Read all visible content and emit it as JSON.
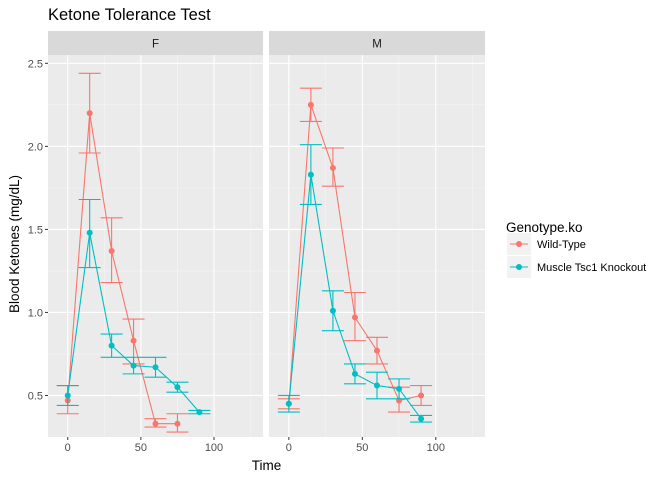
{
  "chart_data": {
    "type": "line",
    "title": "Ketone Tolerance Test",
    "xlabel": "Time",
    "ylabel": "Blood Ketones (mg/dL)",
    "xlim": [
      -13.5,
      133.5
    ],
    "ylim": [
      0.25,
      2.55
    ],
    "x_ticks": [
      0,
      50,
      100
    ],
    "y_ticks": [
      0.5,
      1.0,
      1.5,
      2.0,
      2.5
    ],
    "y_tick_labels": [
      "0.5",
      "1.0",
      "1.5",
      "2.0",
      "2.5"
    ],
    "grid": true,
    "facets": [
      "F",
      "M"
    ],
    "legend": {
      "title": "Genotype.ko",
      "position": "right",
      "entries": [
        "Wild-Type",
        "Muscle Tsc1 Knockout"
      ]
    },
    "series": [
      {
        "name": "Wild-Type",
        "color": "#F8766D",
        "panels": {
          "F": [
            {
              "x": 0,
              "y": 0.47,
              "lo": 0.39,
              "hi": 0.56
            },
            {
              "x": 15,
              "y": 2.2,
              "lo": 1.96,
              "hi": 2.44
            },
            {
              "x": 30,
              "y": 1.37,
              "lo": 1.18,
              "hi": 1.57
            },
            {
              "x": 45,
              "y": 0.83,
              "lo": 0.69,
              "hi": 0.96
            },
            {
              "x": 60,
              "y": 0.33,
              "lo": 0.31,
              "hi": 0.36
            },
            {
              "x": 75,
              "y": 0.33,
              "lo": 0.28,
              "hi": 0.39
            }
          ],
          "M": [
            {
              "x": 0,
              "y": 0.45,
              "lo": 0.42,
              "hi": 0.48
            },
            {
              "x": 15,
              "y": 2.25,
              "lo": 2.15,
              "hi": 2.35
            },
            {
              "x": 30,
              "y": 1.87,
              "lo": 1.76,
              "hi": 1.99
            },
            {
              "x": 45,
              "y": 0.97,
              "lo": 0.83,
              "hi": 1.12
            },
            {
              "x": 60,
              "y": 0.77,
              "lo": 0.69,
              "hi": 0.85
            },
            {
              "x": 75,
              "y": 0.47,
              "lo": 0.4,
              "hi": 0.55
            },
            {
              "x": 90,
              "y": 0.5,
              "lo": 0.44,
              "hi": 0.56
            }
          ]
        }
      },
      {
        "name": "Muscle Tsc1 Knockout",
        "color": "#00BFC4",
        "panels": {
          "F": [
            {
              "x": 0,
              "y": 0.5,
              "lo": 0.44,
              "hi": 0.56
            },
            {
              "x": 15,
              "y": 1.48,
              "lo": 1.27,
              "hi": 1.68
            },
            {
              "x": 30,
              "y": 0.8,
              "lo": 0.73,
              "hi": 0.87
            },
            {
              "x": 45,
              "y": 0.68,
              "lo": 0.63,
              "hi": 0.73
            },
            {
              "x": 60,
              "y": 0.67,
              "lo": 0.61,
              "hi": 0.73
            },
            {
              "x": 75,
              "y": 0.55,
              "lo": 0.52,
              "hi": 0.58
            },
            {
              "x": 90,
              "y": 0.4,
              "lo": 0.39,
              "hi": 0.41
            }
          ],
          "M": [
            {
              "x": 0,
              "y": 0.45,
              "lo": 0.4,
              "hi": 0.5
            },
            {
              "x": 15,
              "y": 1.83,
              "lo": 1.65,
              "hi": 2.01
            },
            {
              "x": 30,
              "y": 1.01,
              "lo": 0.89,
              "hi": 1.13
            },
            {
              "x": 45,
              "y": 0.63,
              "lo": 0.57,
              "hi": 0.69
            },
            {
              "x": 60,
              "y": 0.56,
              "lo": 0.48,
              "hi": 0.64
            },
            {
              "x": 75,
              "y": 0.54,
              "lo": 0.48,
              "hi": 0.6
            },
            {
              "x": 90,
              "y": 0.36,
              "lo": 0.34,
              "hi": 0.38
            }
          ]
        }
      }
    ]
  }
}
